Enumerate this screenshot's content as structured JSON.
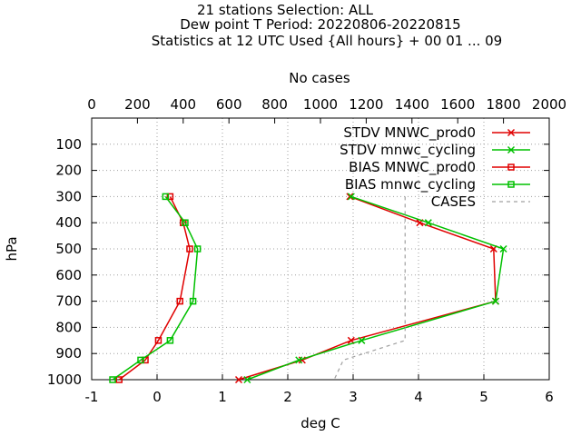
{
  "chart_data": {
    "type": "line",
    "title_lines": [
      "21 stations Selection: ALL",
      "Dew point T  Period: 20220806-20220815",
      "Statistics at 12 UTC  Used {All hours} + 00 01 ... 09"
    ],
    "xlabel": "deg C",
    "x2label": "No cases",
    "ylabel": "hPa",
    "xlim": [
      -1,
      6
    ],
    "x2lim": [
      0,
      2000
    ],
    "ylim": [
      1000,
      0
    ],
    "xticks": [
      -1,
      0,
      1,
      2,
      3,
      4,
      5,
      6
    ],
    "x2ticks": [
      0,
      200,
      400,
      600,
      800,
      1000,
      1200,
      1400,
      1600,
      1800,
      2000
    ],
    "yticks": [
      100,
      200,
      300,
      400,
      500,
      600,
      700,
      800,
      900,
      1000
    ],
    "grid": true,
    "legend_position": "top-right",
    "series": [
      {
        "name": "STDV MNWC_prod0",
        "color": "#e00000",
        "marker": "x",
        "points": [
          [
            2.95,
            300
          ],
          [
            4.02,
            400
          ],
          [
            5.15,
            500
          ],
          [
            5.18,
            700
          ],
          [
            2.97,
            850
          ],
          [
            2.22,
            925
          ],
          [
            1.25,
            1000
          ]
        ]
      },
      {
        "name": "STDV mnwc_cycling",
        "color": "#00c000",
        "marker": "x",
        "points": [
          [
            2.97,
            300
          ],
          [
            4.15,
            400
          ],
          [
            5.3,
            500
          ],
          [
            5.18,
            700
          ],
          [
            3.13,
            850
          ],
          [
            2.17,
            925
          ],
          [
            1.38,
            1000
          ]
        ]
      },
      {
        "name": "BIAS MNWC_prod0",
        "color": "#e00000",
        "marker": "square",
        "points": [
          [
            0.2,
            300
          ],
          [
            0.4,
            400
          ],
          [
            0.5,
            500
          ],
          [
            0.35,
            700
          ],
          [
            0.02,
            850
          ],
          [
            -0.18,
            925
          ],
          [
            -0.58,
            1000
          ]
        ]
      },
      {
        "name": "BIAS mnwc_cycling",
        "color": "#00c000",
        "marker": "square",
        "points": [
          [
            0.13,
            300
          ],
          [
            0.43,
            400
          ],
          [
            0.62,
            500
          ],
          [
            0.55,
            700
          ],
          [
            0.2,
            850
          ],
          [
            -0.25,
            925
          ],
          [
            -0.68,
            1000
          ]
        ]
      },
      {
        "name": "CASES",
        "color": "#a0a0a0",
        "marker": "none",
        "axis": "x2",
        "points": [
          [
            1370,
            300
          ],
          [
            1370,
            400
          ],
          [
            1370,
            500
          ],
          [
            1370,
            700
          ],
          [
            1370,
            850
          ],
          [
            1100,
            925
          ],
          [
            1060,
            1000
          ]
        ]
      }
    ]
  }
}
